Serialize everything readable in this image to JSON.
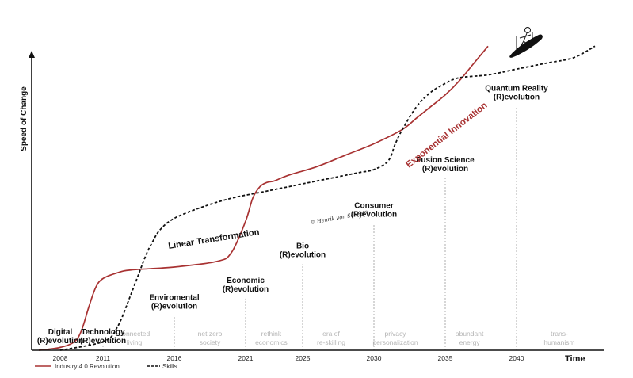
{
  "chart_data": {
    "type": "line",
    "xlabel": "Time",
    "ylabel": "Speed of Change",
    "xlim": [
      2006,
      2046
    ],
    "ylim": [
      0,
      100
    ],
    "x_ticks": [
      2008,
      2011,
      2016,
      2021,
      2025,
      2030,
      2035,
      2040
    ],
    "series": [
      {
        "name": "Industry 4.0 Revolution",
        "line_style": "solid",
        "color": "#a83232",
        "x": [
          2006.5,
          2008.0,
          2009.0,
          2009.5,
          2010.0,
          2010.5,
          2011.0,
          2012.0,
          2013.0,
          2016.0,
          2019.0,
          2020.0,
          2021.0,
          2021.5,
          2022.0,
          2022.5,
          2023.0,
          2024.0,
          2026.0,
          2028.0,
          2030.0,
          2032.0,
          2033.0,
          2034.0,
          2035.0,
          2036.0,
          2037.0,
          2038.0
        ],
        "y": [
          0.0,
          1.0,
          3.0,
          7.0,
          15.0,
          22.0,
          25.0,
          27.0,
          28.0,
          29.0,
          31.0,
          34.0,
          45.0,
          53.0,
          57.0,
          58.5,
          59.0,
          61.0,
          64.0,
          68.0,
          72.0,
          77.0,
          81.0,
          85.0,
          89.0,
          94.0,
          100.0,
          106.0
        ]
      },
      {
        "name": "Skills",
        "line_style": "dashed",
        "color": "#111111",
        "x": [
          2008.0,
          2011.0,
          2012.0,
          2013.0,
          2014.0,
          2014.5,
          2015.0,
          2016.0,
          2018.0,
          2020.0,
          2022.0,
          2024.0,
          2026.0,
          2028.0,
          2029.0,
          2030.0,
          2031.0,
          2031.5,
          2032.0,
          2033.0,
          2034.0,
          2035.0,
          2036.0,
          2038.0,
          2040.0,
          2042.0,
          2044.0,
          2045.5
        ],
        "y": [
          0.0,
          3.0,
          8.0,
          20.0,
          33.0,
          38.0,
          42.0,
          46.0,
          50.0,
          53.0,
          55.0,
          57.0,
          59.0,
          61.0,
          62.0,
          63.0,
          66.0,
          72.0,
          77.0,
          85.0,
          90.0,
          93.0,
          95.0,
          96.0,
          98.0,
          100.0,
          102.0,
          106.0
        ]
      }
    ],
    "revolutions": [
      {
        "x": 2008,
        "line1": "Digital",
        "line2": "(R)evolution",
        "line_top": 0
      },
      {
        "x": 2011,
        "line1": "Technology",
        "line2": "(R)evolution",
        "line_top": 0
      },
      {
        "x": 2016,
        "line1": "Enviromental",
        "line2": "(R)evolution",
        "line_top": 12
      },
      {
        "x": 2021,
        "line1": "Economic",
        "line2": "(R)evolution",
        "line_top": 18
      },
      {
        "x": 2025,
        "line1": "Bio",
        "line2": "(R)evolution",
        "line_top": 30
      },
      {
        "x": 2030,
        "line1": "Consumer",
        "line2": "(R)evolution",
        "line_top": 44
      },
      {
        "x": 2035,
        "line1": "Fusion Science",
        "line2": "(R)evolution",
        "line_top": 60
      },
      {
        "x": 2040,
        "line1": "Quantum Reality",
        "line2": "(R)evolution",
        "line_top": 85
      }
    ],
    "eras": [
      {
        "x": 2013.2,
        "line1": "connected",
        "line2": "living"
      },
      {
        "x": 2018.5,
        "line1": "net zero",
        "line2": "society"
      },
      {
        "x": 2022.8,
        "line1": "rethink",
        "line2": "economics"
      },
      {
        "x": 2027.0,
        "line1": "era of",
        "line2": "re-skilling"
      },
      {
        "x": 2031.5,
        "line1": "privacy",
        "line2": "personalization"
      },
      {
        "x": 2036.7,
        "line1": "abundant",
        "line2": "energy"
      },
      {
        "x": 2043.0,
        "line1": "trans-",
        "line2": "humanism"
      }
    ],
    "annotations": {
      "exponential": "Exponential Innovation",
      "linear": "Linear Transformation",
      "copyright": "© Henrik von Scheel™"
    },
    "legend_position": "bottom-left"
  }
}
